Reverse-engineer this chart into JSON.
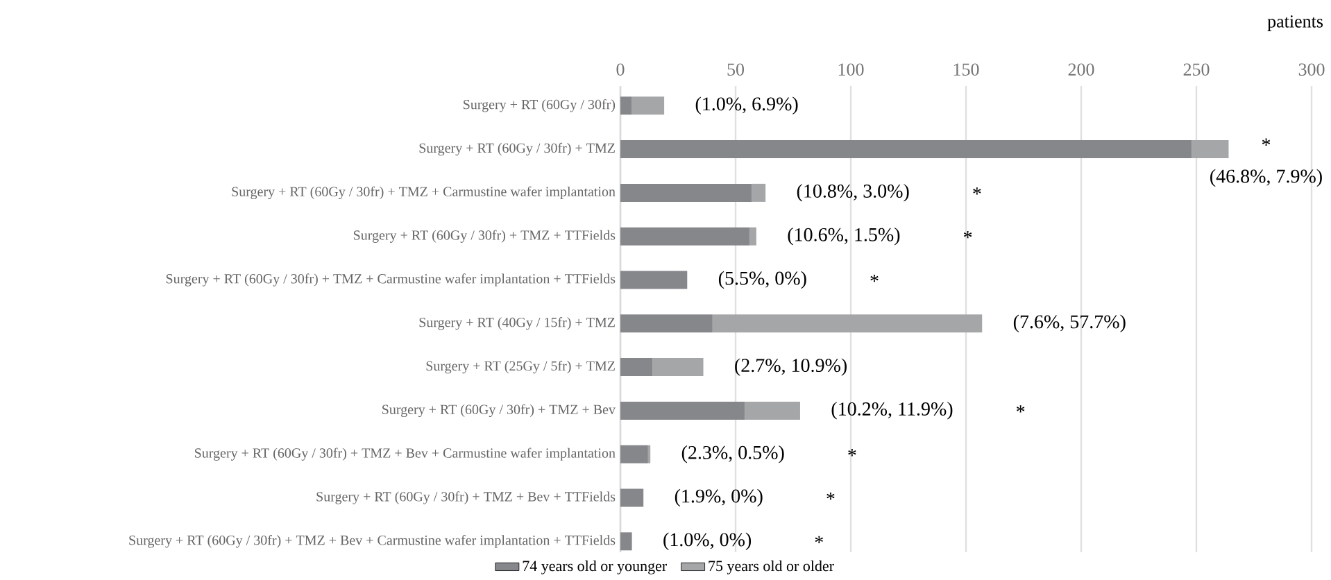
{
  "chart_data": {
    "type": "bar",
    "orientation": "horizontal",
    "stacked": true,
    "xlabel": "patients",
    "categories": [
      "Surgery + RT (60Gy / 30fr)",
      "Surgery + RT (60Gy / 30fr) + TMZ",
      "Surgery + RT (60Gy / 30fr) + TMZ + Carmustine wafer implantation",
      "Surgery + RT (60Gy / 30fr) + TMZ + TTFields",
      "Surgery + RT (60Gy / 30fr) + TMZ + Carmustine wafer implantation + TTFields",
      "Surgery + RT (40Gy / 15fr) + TMZ",
      "Surgery + RT (25Gy / 5fr) + TMZ",
      "Surgery + RT (60Gy / 30fr) + TMZ + Bev",
      "Surgery + RT (60Gy / 30fr) + TMZ + Bev + Carmustine wafer implantation",
      "Surgery + RT (60Gy / 30fr) + TMZ + Bev + TTFields",
      "Surgery + RT (60Gy / 30fr) + TMZ + Bev + Carmustine wafer implantation + TTFields"
    ],
    "series": [
      {
        "name": "74 years old or younger",
        "color": "#86878b",
        "values": [
          5,
          248,
          57,
          56,
          29,
          40,
          14,
          54,
          12,
          10,
          5
        ]
      },
      {
        "name": "75 years old or older",
        "color": "#a5a6a8",
        "values": [
          14,
          16,
          6,
          3,
          0,
          117,
          22,
          24,
          1,
          0,
          0
        ]
      }
    ],
    "annotations": [
      "(1.0%, 6.9%)",
      "(46.8%, 7.9%)",
      "*",
      "(10.8%, 3.0%)",
      "*",
      "(10.6%, 1.5%)",
      "*",
      "(5.5%, 0%)",
      "*",
      "(7.6%, 57.7%)",
      "(2.7%, 10.9%)",
      "(10.2%, 11.9%)",
      "*",
      "(2.3%, 0.5%)",
      "*",
      "(1.9%, 0%)",
      "*",
      "(1.0%, 0%)",
      "*"
    ],
    "xlim": [
      0,
      300
    ],
    "xticks": [
      0,
      50,
      100,
      150,
      200,
      250,
      300
    ],
    "grid": "x",
    "legend": "bottom"
  }
}
